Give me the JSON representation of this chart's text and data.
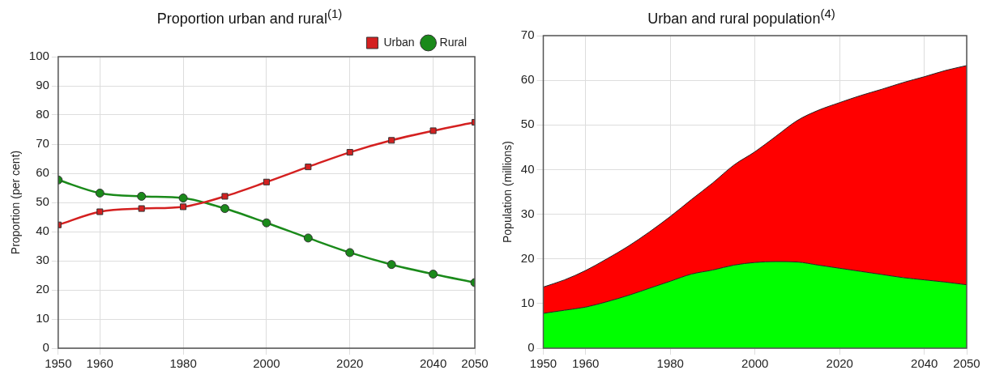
{
  "chart_data": [
    {
      "type": "line",
      "title": "Proportion urban and rural$^{(1)}$",
      "ylabel": "Proportion (per cent)",
      "x": [
        1950,
        1960,
        1970,
        1980,
        1990,
        2000,
        2010,
        2020,
        2030,
        2040,
        2050
      ],
      "series": [
        {
          "name": "Urban",
          "color": "#d42020",
          "marker": "square",
          "values": [
            42.3,
            46.8,
            47.9,
            48.5,
            52.1,
            57.0,
            62.2,
            67.2,
            71.3,
            74.6,
            77.5
          ]
        },
        {
          "name": "Rural",
          "color": "#1a8a1a",
          "marker": "circle",
          "values": [
            57.7,
            53.2,
            52.1,
            51.5,
            47.9,
            43.0,
            37.8,
            32.8,
            28.7,
            25.4,
            22.5
          ]
        }
      ],
      "xlim": [
        1950,
        2050
      ],
      "xticks": [
        1950,
        1960,
        1980,
        2000,
        2020,
        2040,
        2050
      ],
      "ylim": [
        0,
        100
      ],
      "yticks": [
        0,
        10,
        20,
        30,
        40,
        50,
        60,
        70,
        80,
        90,
        100
      ],
      "grid": true,
      "legend": "top right"
    },
    {
      "type": "area",
      "title": "Urban and rural population$^{(4)}$",
      "ylabel": "Population (millions)",
      "stacked": true,
      "x": [
        1950,
        1955,
        1960,
        1965,
        1970,
        1975,
        1980,
        1985,
        1990,
        1995,
        2000,
        2005,
        2010,
        2015,
        2020,
        2025,
        2030,
        2035,
        2040,
        2045,
        2050
      ],
      "series": [
        {
          "color": "#00ff00",
          "values": [
            7.8,
            8.5,
            9.2,
            10.4,
            11.8,
            13.4,
            15.0,
            16.6,
            17.5,
            18.6,
            19.2,
            19.4,
            19.3,
            18.6,
            17.9,
            17.2,
            16.5,
            15.8,
            15.3,
            14.8,
            14.2
          ]
        },
        {
          "color": "#ff0000",
          "values": [
            5.9,
            6.8,
            8.2,
            9.6,
            11.0,
            12.6,
            14.5,
            16.7,
            19.5,
            22.4,
            24.8,
            28.1,
            31.7,
            34.7,
            37.1,
            39.4,
            41.5,
            43.7,
            45.5,
            47.4,
            49.1
          ]
        }
      ],
      "xlim": [
        1950,
        2050
      ],
      "xticks": [
        1950,
        1960,
        1980,
        2000,
        2020,
        2040,
        2050
      ],
      "ylim": [
        0,
        70
      ],
      "yticks": [
        0,
        10,
        20,
        30,
        40,
        50,
        60,
        70
      ],
      "grid": true
    }
  ]
}
